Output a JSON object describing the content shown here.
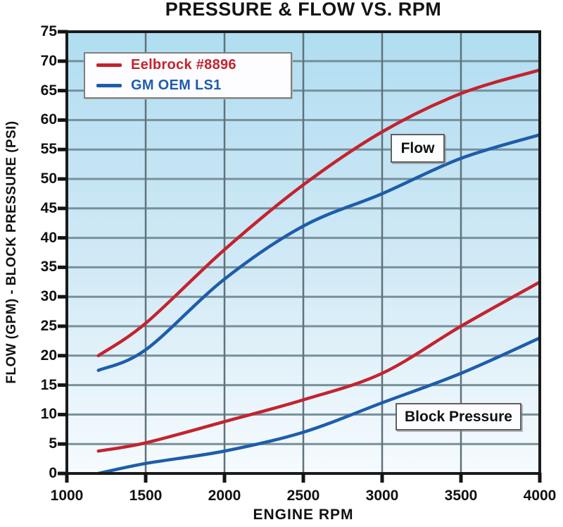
{
  "chart_data": {
    "type": "line",
    "title": "PRESSURE & FLOW VS. RPM",
    "xlabel": "ENGINE RPM",
    "ylabel": "FLOW (GPM) - BLOCK PRESSURE (PSI)",
    "xlim": [
      1000,
      4000
    ],
    "ylim": [
      0,
      75
    ],
    "x_ticks": [
      1000,
      1500,
      2000,
      2500,
      3000,
      3500,
      4000
    ],
    "y_ticks": [
      0,
      5,
      10,
      15,
      20,
      25,
      30,
      35,
      40,
      45,
      50,
      55,
      60,
      65,
      70,
      75
    ],
    "grid": true,
    "legend_position": "top-left",
    "plot_bg_gradient": [
      "#b0ddf1",
      "#d3eaf6",
      "#f6fbfe"
    ],
    "legend": {
      "items": [
        {
          "label": "Eelbrock #8896",
          "color": "#c4232e"
        },
        {
          "label": "GM OEM LS1",
          "color": "#1d5dab"
        }
      ]
    },
    "annotations": [
      {
        "text": "Flow"
      },
      {
        "text": "Block Pressure"
      }
    ],
    "series": [
      {
        "name": "Eelbrock #8896 - Flow",
        "color": "#c4232e",
        "x": [
          1200,
          1500,
          2000,
          2500,
          3000,
          3500,
          4000
        ],
        "y": [
          20,
          25.5,
          38,
          49,
          58,
          64.5,
          68.5
        ]
      },
      {
        "name": "GM OEM LS1 - Flow",
        "color": "#1d5dab",
        "x": [
          1200,
          1500,
          2000,
          2500,
          3000,
          3500,
          4000
        ],
        "y": [
          17.5,
          21,
          33,
          42,
          47.5,
          53.5,
          57.5
        ]
      },
      {
        "name": "Eelbrock #8896 - Block Pressure",
        "color": "#c4232e",
        "x": [
          1200,
          1500,
          2000,
          2500,
          3000,
          3500,
          4000
        ],
        "y": [
          3.8,
          5.2,
          8.8,
          12.5,
          17,
          25,
          32.5
        ]
      },
      {
        "name": "GM OEM LS1 - Block Pressure",
        "color": "#1d5dab",
        "x": [
          1200,
          1500,
          2000,
          2500,
          3000,
          3500,
          4000
        ],
        "y": [
          0,
          1.7,
          3.8,
          7,
          12,
          17,
          23
        ]
      }
    ]
  }
}
